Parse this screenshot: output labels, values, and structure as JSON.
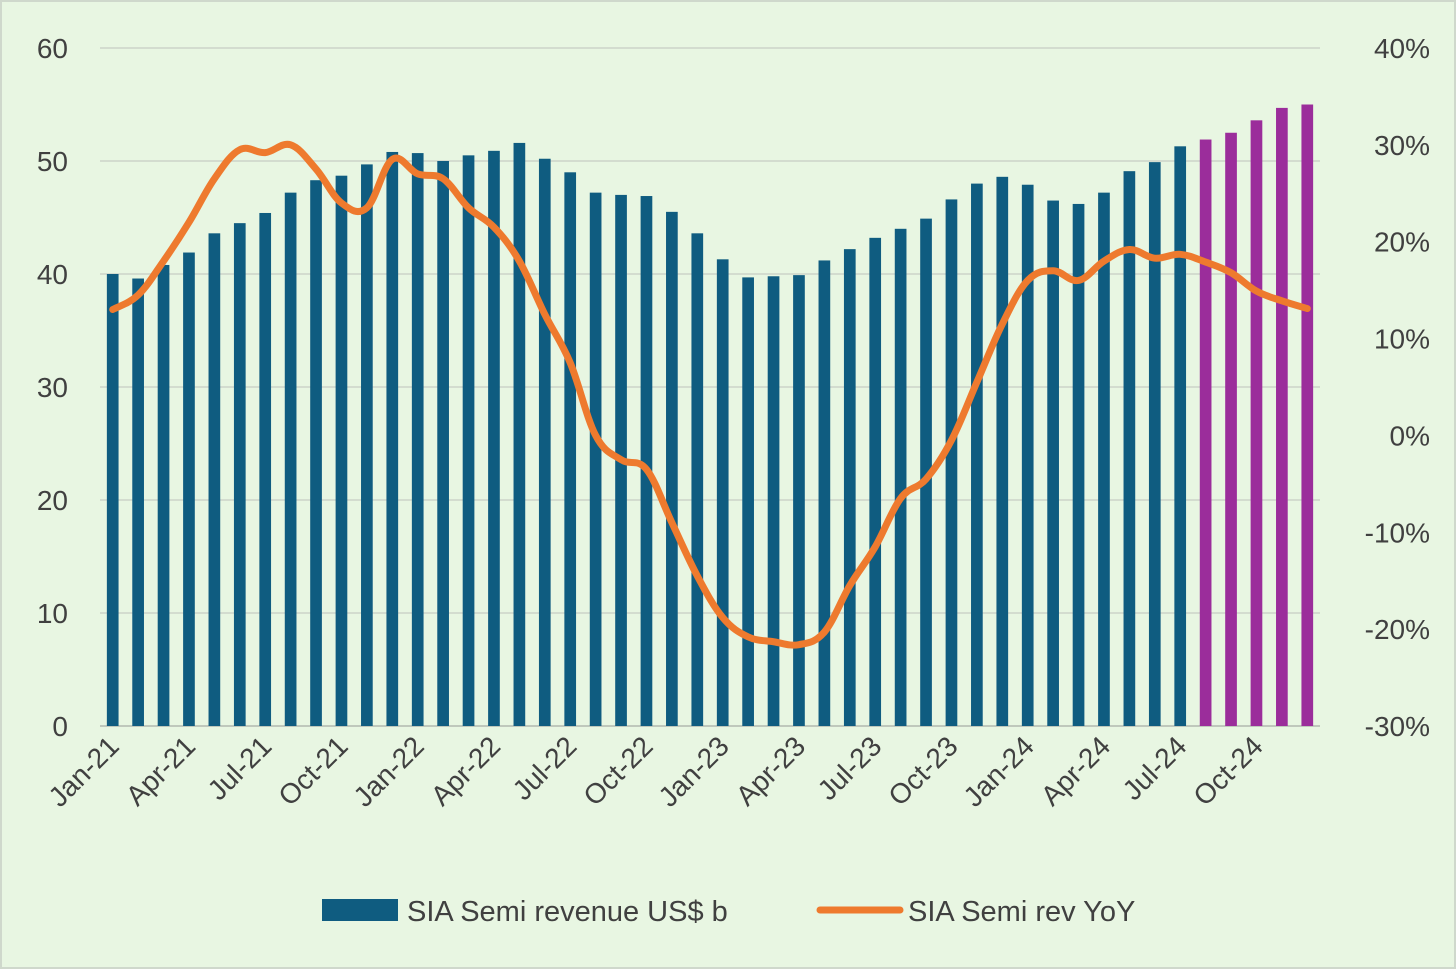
{
  "chart_data": {
    "type": "bar",
    "categories": [
      "Jan-21",
      "Feb-21",
      "Mar-21",
      "Apr-21",
      "May-21",
      "Jun-21",
      "Jul-21",
      "Aug-21",
      "Sep-21",
      "Oct-21",
      "Nov-21",
      "Dec-21",
      "Jan-22",
      "Feb-22",
      "Mar-22",
      "Apr-22",
      "May-22",
      "Jun-22",
      "Jul-22",
      "Aug-22",
      "Sep-22",
      "Oct-22",
      "Nov-22",
      "Dec-22",
      "Jan-23",
      "Feb-23",
      "Mar-23",
      "Apr-23",
      "May-23",
      "Jun-23",
      "Jul-23",
      "Aug-23",
      "Sep-23",
      "Oct-23",
      "Nov-23",
      "Dec-23",
      "Jan-24",
      "Feb-24",
      "Mar-24",
      "Apr-24",
      "May-24",
      "Jun-24",
      "Jul-24",
      "Aug-24",
      "Sep-24",
      "Oct-24",
      "Nov-24",
      "Dec-24"
    ],
    "x_tick_labels": [
      "Jan-21",
      "Apr-21",
      "Jul-21",
      "Oct-21",
      "Jan-22",
      "Apr-22",
      "Jul-22",
      "Oct-22",
      "Jan-23",
      "Apr-23",
      "Jul-23",
      "Oct-23",
      "Jan-24",
      "Apr-24",
      "Jul-24",
      "Oct-24"
    ],
    "series": [
      {
        "name": "SIA Semi revenue US$ b",
        "type": "bar",
        "axis": "left",
        "color": "#0f5c80",
        "forecast_color": "#9b2d9b",
        "forecast_from_index": 43,
        "values": [
          40.0,
          39.6,
          40.8,
          41.9,
          43.6,
          44.5,
          45.4,
          47.2,
          48.3,
          48.7,
          49.7,
          50.8,
          50.7,
          50.0,
          50.5,
          50.9,
          51.6,
          50.2,
          49.0,
          47.2,
          47.0,
          46.9,
          45.5,
          43.6,
          41.3,
          39.7,
          39.8,
          39.9,
          41.2,
          42.2,
          43.2,
          44.0,
          44.9,
          46.6,
          48.0,
          48.6,
          47.9,
          46.5,
          46.2,
          47.2,
          49.1,
          49.9,
          51.3,
          51.9,
          52.5,
          53.6,
          54.7,
          55.0
        ]
      },
      {
        "name": "SIA Semi rev YoY",
        "type": "line",
        "axis": "right",
        "color": "#ee7a2e",
        "values": [
          13.0,
          14.5,
          18.0,
          22.0,
          26.5,
          29.5,
          29.2,
          30.0,
          27.5,
          24.0,
          23.5,
          28.5,
          27.0,
          26.5,
          23.5,
          21.5,
          18.0,
          12.5,
          7.5,
          0.0,
          -2.5,
          -3.5,
          -9.0,
          -14.5,
          -18.8,
          -20.8,
          -21.3,
          -21.6,
          -20.3,
          -15.5,
          -11.5,
          -6.5,
          -4.5,
          -0.5,
          5.5,
          11.5,
          16.0,
          17.0,
          16.0,
          18.0,
          19.2,
          18.3,
          18.7,
          17.9,
          16.8,
          14.9,
          13.9,
          13.1
        ]
      }
    ],
    "y_left": {
      "min": 0,
      "max": 60,
      "ticks": [
        "0",
        "10",
        "20",
        "30",
        "40",
        "50",
        "60"
      ]
    },
    "y_right": {
      "min": -30,
      "max": 40,
      "ticks": [
        "-30%",
        "-20%",
        "-10%",
        "0%",
        "10%",
        "20%",
        "30%",
        "40%"
      ]
    },
    "grid": true,
    "legend_position": "bottom",
    "title": "",
    "xlabel": "",
    "ylabel": ""
  },
  "legend": {
    "bar_label": "SIA Semi revenue US$ b",
    "line_label": "SIA Semi rev YoY"
  }
}
